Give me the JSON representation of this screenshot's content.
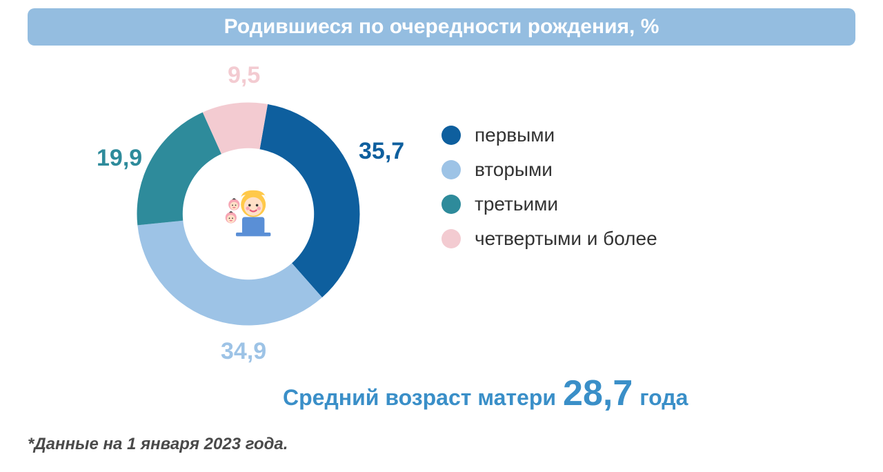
{
  "title": "Родившиеся по очередности рождения, %",
  "title_bar_color": "#94bde0",
  "title_text_color": "#ffffff",
  "title_fontsize": 30,
  "chart": {
    "type": "donut",
    "inner_radius_ratio": 0.56,
    "background_color": "#ffffff",
    "slices": [
      {
        "label": "первыми",
        "value": 35.7,
        "display": "35,7",
        "color": "#0e5f9e",
        "text_color": "#0e5f9e"
      },
      {
        "label": "вторыми",
        "value": 34.9,
        "display": "34,9",
        "color": "#9dc3e6",
        "text_color": "#9dc3e6"
      },
      {
        "label": "третьими",
        "value": 19.9,
        "display": "19,9",
        "color": "#2e8b9b",
        "text_color": "#2e8b9b"
      },
      {
        "label": "четвертыми и более",
        "value": 9.5,
        "display": "9,5",
        "color": "#f3cbd1",
        "text_color": "#f3cbd1"
      }
    ],
    "start_angle_deg": -80,
    "label_fontsize": 34,
    "label_fontweight": "bold",
    "center_icon": "mother-with-babies",
    "icon_colors": {
      "hair": "#ffc94a",
      "face": "#ffe0c7",
      "lips": "#e85a7a",
      "cheeks": "#f7a6b4",
      "shirt": "#5a8fd6",
      "baby": "#f7a6b4"
    }
  },
  "legend": {
    "fontsize": 28,
    "text_color": "#333333",
    "dot_size": 28
  },
  "avg_age": {
    "prefix": "Средний возраст матери",
    "value": "28,7",
    "suffix": "года",
    "color": "#3a8fc8",
    "prefix_fontsize": 32,
    "value_fontsize": 52,
    "suffix_fontsize": 32
  },
  "footnote": {
    "text": "*Данные на 1 января 2023 года.",
    "color": "#4a4a4a",
    "fontsize": 24
  }
}
